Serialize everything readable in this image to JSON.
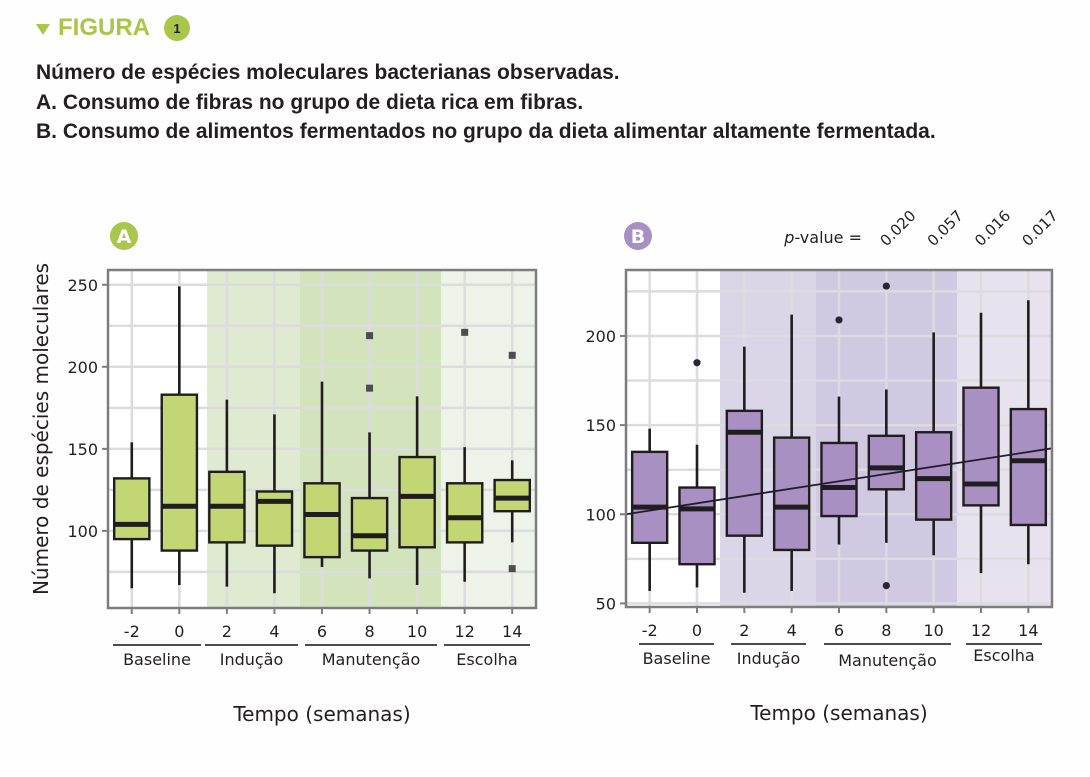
{
  "figure": {
    "label": "FIGURA",
    "number": "1",
    "accent_color": "#a9c64a"
  },
  "caption": {
    "line1": "Número de espécies moleculares bacterianas observadas.",
    "line2": "A. Consumo de fibras no grupo de dieta rica em fibras.",
    "line3": "B. Consumo de alimentos fermentados no grupo da dieta alimentar altamente fermentada."
  },
  "chart_data": [
    {
      "panel": "A",
      "type": "boxplot",
      "title": "",
      "xlabel": "Tempo (semanas)",
      "ylabel": "Número de espécies moleculares",
      "ylim": [
        53,
        259
      ],
      "yticks": [
        100,
        150,
        200,
        250
      ],
      "grid": true,
      "box_color": "#c2d674",
      "categories": [
        "-2",
        "0",
        "2",
        "4",
        "6",
        "8",
        "10",
        "12",
        "14"
      ],
      "phases": [
        {
          "name": "Baseline",
          "weeks": [
            "-2",
            "0"
          ],
          "background": "#ffffff"
        },
        {
          "name": "Indução",
          "weeks": [
            "2",
            "4"
          ],
          "background": "#dfead0"
        },
        {
          "name": "Manutenção",
          "weeks": [
            "6",
            "8",
            "10"
          ],
          "background": "#d3e3bb"
        },
        {
          "name": "Escolha",
          "weeks": [
            "12",
            "14"
          ],
          "background": "#edf3e8"
        }
      ],
      "boxes": [
        {
          "week": "-2",
          "whisker_low": 65,
          "q1": 95,
          "median": 104,
          "q3": 132,
          "whisker_high": 154,
          "outliers": []
        },
        {
          "week": "0",
          "whisker_low": 67,
          "q1": 88,
          "median": 115,
          "q3": 183,
          "whisker_high": 249,
          "outliers": []
        },
        {
          "week": "2",
          "whisker_low": 66,
          "q1": 93,
          "median": 115,
          "q3": 136,
          "whisker_high": 180,
          "outliers": []
        },
        {
          "week": "4",
          "whisker_low": 62,
          "q1": 91,
          "median": 118,
          "q3": 124,
          "whisker_high": 171,
          "outliers": []
        },
        {
          "week": "6",
          "whisker_low": 78,
          "q1": 84,
          "median": 110,
          "q3": 129,
          "whisker_high": 191,
          "outliers": []
        },
        {
          "week": "8",
          "whisker_low": 71,
          "q1": 88,
          "median": 97,
          "q3": 120,
          "whisker_high": 160,
          "outliers": [
            219,
            187
          ]
        },
        {
          "week": "10",
          "whisker_low": 67,
          "q1": 90,
          "median": 121,
          "q3": 145,
          "whisker_high": 182,
          "outliers": []
        },
        {
          "week": "12",
          "whisker_low": 69,
          "q1": 93,
          "median": 108,
          "q3": 129,
          "whisker_high": 151,
          "outliers": [
            221
          ]
        },
        {
          "week": "14",
          "whisker_low": 93,
          "q1": 112,
          "median": 120,
          "q3": 131,
          "whisker_high": 143,
          "outliers": [
            207,
            77
          ]
        }
      ],
      "outlier_shape": "square"
    },
    {
      "panel": "B",
      "type": "boxplot",
      "title": "",
      "xlabel": "Tempo (semanas)",
      "ylabel": "",
      "ylim": [
        48,
        237
      ],
      "yticks": [
        50,
        100,
        150,
        200
      ],
      "grid": true,
      "box_color": "#a891c2",
      "categories": [
        "-2",
        "0",
        "2",
        "4",
        "6",
        "8",
        "10",
        "12",
        "14"
      ],
      "phases": [
        {
          "name": "Baseline",
          "weeks": [
            "-2",
            "0"
          ],
          "background": "#ffffff"
        },
        {
          "name": "Indução",
          "weeks": [
            "2",
            "4"
          ],
          "background": "#dbd5e8"
        },
        {
          "name": "Manutenção",
          "weeks": [
            "6",
            "8",
            "10"
          ],
          "background": "#d1c8e2"
        },
        {
          "name": "Escolha",
          "weeks": [
            "12",
            "14"
          ],
          "background": "#e8e1ee"
        }
      ],
      "boxes": [
        {
          "week": "-2",
          "whisker_low": 57,
          "q1": 84,
          "median": 104,
          "q3": 135,
          "whisker_high": 148,
          "outliers": []
        },
        {
          "week": "0",
          "whisker_low": 59,
          "q1": 72,
          "median": 103,
          "q3": 115,
          "whisker_high": 139,
          "outliers": [
            185
          ]
        },
        {
          "week": "2",
          "whisker_low": 56,
          "q1": 88,
          "median": 146,
          "q3": 158,
          "whisker_high": 194,
          "outliers": []
        },
        {
          "week": "4",
          "whisker_low": 57,
          "q1": 80,
          "median": 104,
          "q3": 143,
          "whisker_high": 212,
          "outliers": []
        },
        {
          "week": "6",
          "whisker_low": 83,
          "q1": 99,
          "median": 115,
          "q3": 140,
          "whisker_high": 166,
          "outliers": [
            209
          ]
        },
        {
          "week": "8",
          "whisker_low": 84,
          "q1": 114,
          "median": 126,
          "q3": 144,
          "whisker_high": 170,
          "outliers": [
            228,
            60
          ]
        },
        {
          "week": "10",
          "whisker_low": 77,
          "q1": 97,
          "median": 120,
          "q3": 146,
          "whisker_high": 202,
          "outliers": []
        },
        {
          "week": "12",
          "whisker_low": 67,
          "q1": 105,
          "median": 117,
          "q3": 171,
          "whisker_high": 213,
          "outliers": []
        },
        {
          "week": "14",
          "whisker_low": 72,
          "q1": 94,
          "median": 130,
          "q3": 159,
          "whisker_high": 220,
          "outliers": []
        }
      ],
      "outlier_shape": "circle",
      "trend_line": {
        "from": {
          "week": "-3",
          "value": 100
        },
        "to": {
          "week": "15",
          "value": 137
        }
      },
      "pvalue_label": "p-value =",
      "pvalues": [
        {
          "week": "8",
          "value": "0.020"
        },
        {
          "week": "10",
          "value": "0.057"
        },
        {
          "week": "12",
          "value": "0.016"
        },
        {
          "week": "14",
          "value": "0.017"
        }
      ]
    }
  ]
}
